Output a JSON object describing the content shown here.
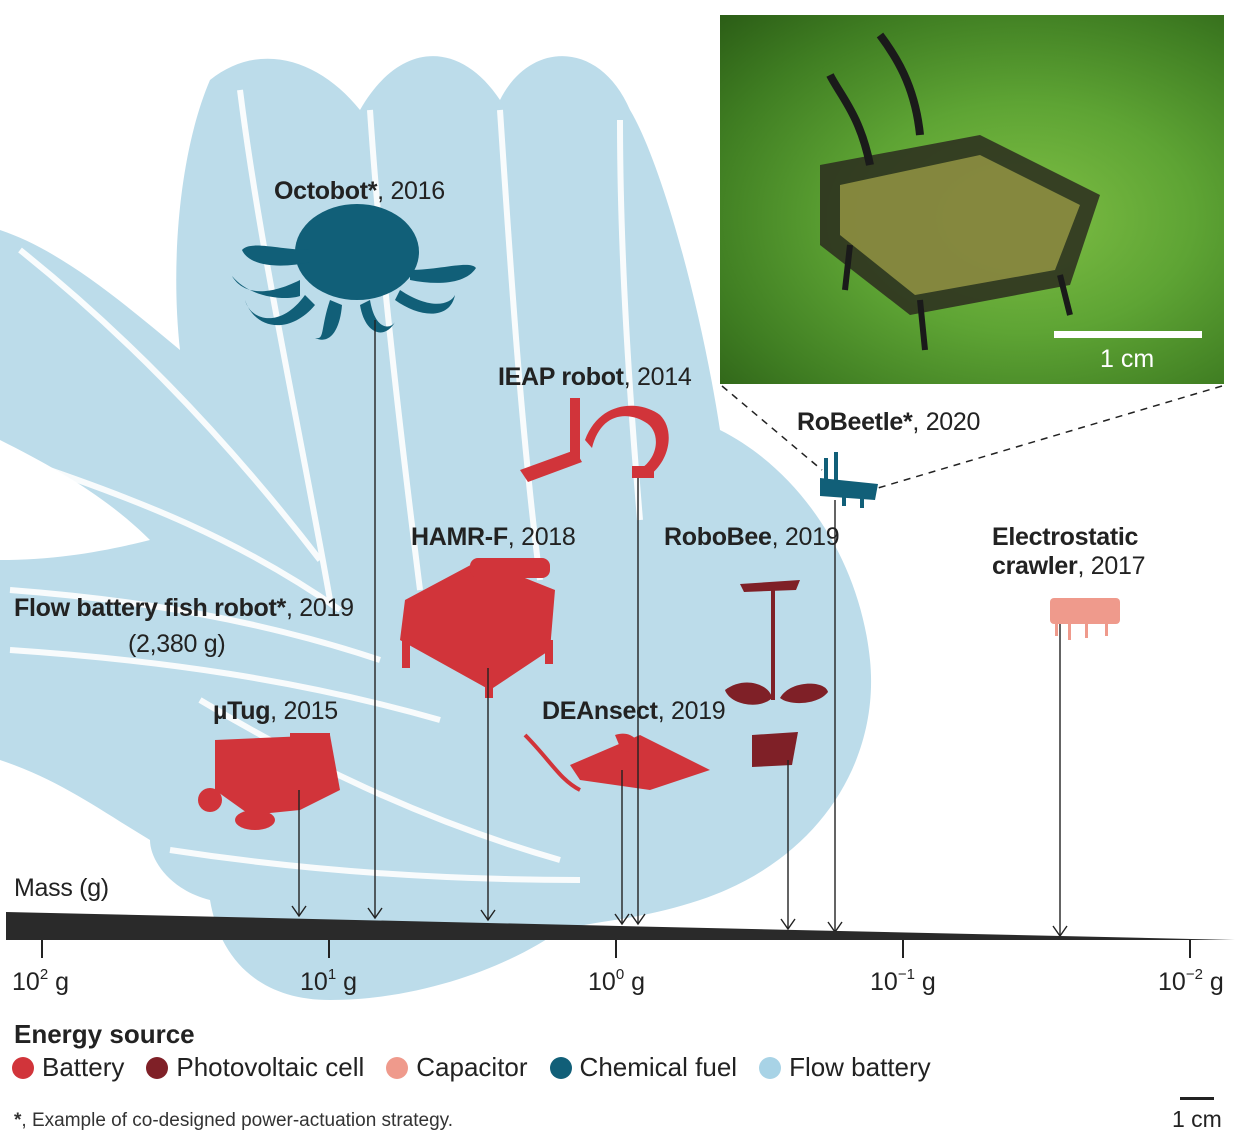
{
  "axis": {
    "label": "Mass (g)",
    "ticks": [
      {
        "base": "10",
        "exp": "2",
        "unit": "g"
      },
      {
        "base": "10",
        "exp": "1",
        "unit": "g"
      },
      {
        "base": "10",
        "exp": "0",
        "unit": "g"
      },
      {
        "base": "10",
        "exp": "−1",
        "unit": "g"
      },
      {
        "base": "10",
        "exp": "−2",
        "unit": "g"
      }
    ]
  },
  "robots": {
    "octobot": {
      "name": "Octobot*",
      "year": ", 2016"
    },
    "ieap": {
      "name": "IEAP robot",
      "year": ", 2014"
    },
    "robeetle": {
      "name": "RoBeetle*",
      "year": ", 2020"
    },
    "hamr": {
      "name": "HAMR-F",
      "year": ", 2018"
    },
    "robobee": {
      "name": "RoboBee",
      "year": ", 2019"
    },
    "electro": {
      "name1": "Electrostatic",
      "name2": "crawler",
      "year": ", 2017"
    },
    "fish": {
      "name": "Flow battery fish robot*",
      "year": ", 2019",
      "mass": "(2,380 g)"
    },
    "mutug": {
      "name": "µTug",
      "year": ", 2015"
    },
    "deansect": {
      "name": "DEAnsect",
      "year": ", 2019"
    }
  },
  "legend": {
    "title": "Energy source",
    "items": [
      {
        "label": "Battery",
        "color": "#d1343a"
      },
      {
        "label": "Photovoltaic cell",
        "color": "#7f2027"
      },
      {
        "label": "Capacitor",
        "color": "#ef9a8c"
      },
      {
        "label": "Chemical fuel",
        "color": "#115f78"
      },
      {
        "label": "Flow battery",
        "color": "#a8d3e6"
      }
    ]
  },
  "footnote": {
    "star": "*",
    "text": ", Example of co-designed power-actuation strategy."
  },
  "scale": {
    "label": "1 cm"
  },
  "photo": {
    "scale_label": "1 cm"
  },
  "colors": {
    "battery": "#d1343a",
    "pv": "#7f2027",
    "capacitor": "#ef9a8c",
    "chemical": "#115f78",
    "flow": "#bcdcea",
    "axis": "#2a2a2a"
  }
}
